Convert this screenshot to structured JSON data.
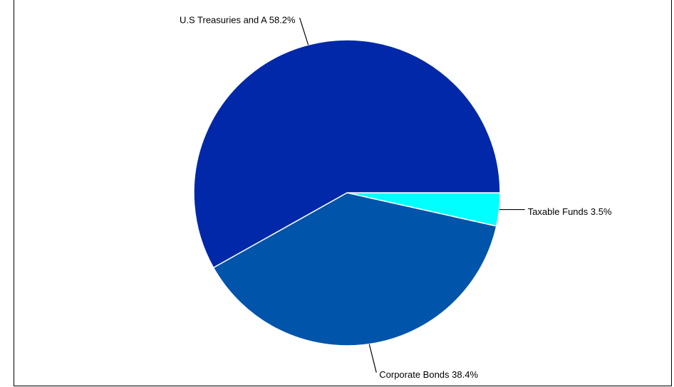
{
  "chart_data": {
    "type": "pie",
    "title": "",
    "slices": [
      {
        "name": "Taxable Funds",
        "value": 3.5,
        "label": "Taxable Funds 3.5%",
        "color": "#00FFFF"
      },
      {
        "name": "Corporate Bonds",
        "value": 38.4,
        "label": "Corporate Bonds 38.4%",
        "color": "#0054AA"
      },
      {
        "name": "U.S Treasuries and A",
        "value": 58.2,
        "label": "U.S Treasuries and A 58.2%",
        "color": "#0028A8"
      }
    ],
    "legend": "none",
    "start_angle": "3 o'clock, clockwise"
  }
}
